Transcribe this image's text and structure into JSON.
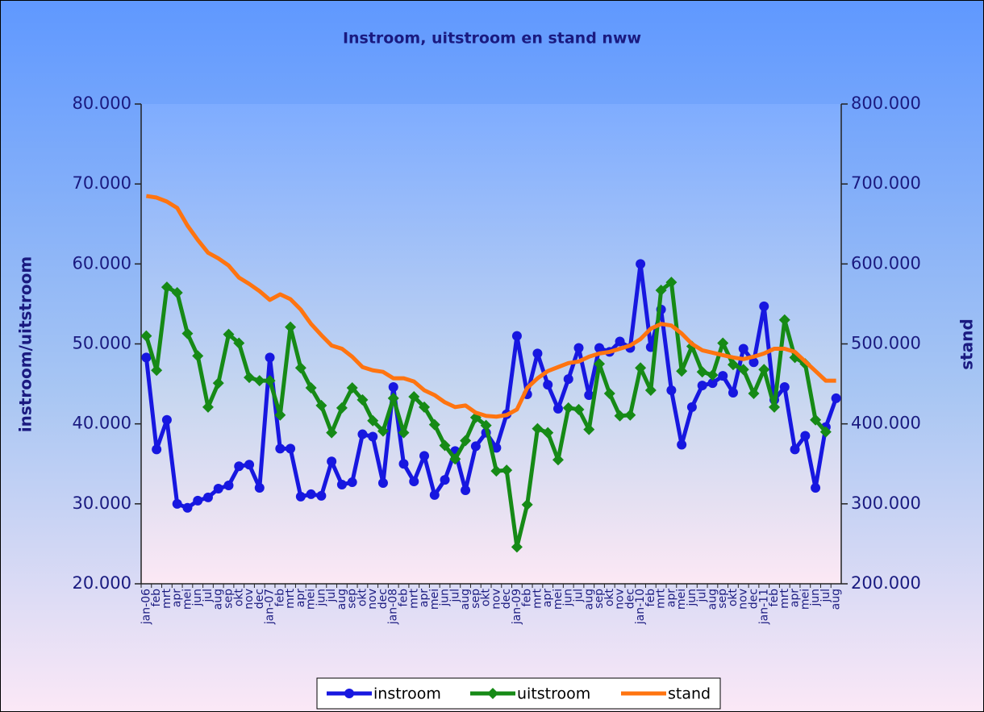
{
  "chart_data": {
    "type": "line",
    "title": "Instroom, uitstroom en stand nww",
    "y_label": "instroom/uitstroom",
    "y2_label": "stand",
    "categories": [
      "jan-06",
      "feb",
      "mrt",
      "apr",
      "mei",
      "jun",
      "jul",
      "aug",
      "sep",
      "okt",
      "nov",
      "dec",
      "jan-07",
      "feb",
      "mrt",
      "apr",
      "mei",
      "jun",
      "jul",
      "aug",
      "sep",
      "okt",
      "nov",
      "dec",
      "jan-08",
      "feb",
      "mrt",
      "apr",
      "mei",
      "jun",
      "jul",
      "aug",
      "sep",
      "okt",
      "nov",
      "dec",
      "jan-09",
      "feb",
      "mrt",
      "apr",
      "mei",
      "jun",
      "jul",
      "aug",
      "sep",
      "okt",
      "nov",
      "dec",
      "jan-10",
      "feb",
      "mrt",
      "apr",
      "mei",
      "jun",
      "jul",
      "aug",
      "sep",
      "okt",
      "nov",
      "dec",
      "jan-11",
      "feb",
      "mrt",
      "apr",
      "mei",
      "jun",
      "jul",
      "aug"
    ],
    "series": [
      {
        "name": "instroom",
        "color": "#1717e0",
        "marker": "circle",
        "values": [
          48300,
          36800,
          40500,
          30000,
          29500,
          30400,
          30800,
          31900,
          32300,
          34700,
          34900,
          32000,
          48300,
          36900,
          36900,
          30900,
          31200,
          31000,
          35300,
          32400,
          32700,
          38700,
          38400,
          32600,
          44600,
          35000,
          32800,
          36000,
          31100,
          33000,
          36600,
          31700,
          37200,
          38900,
          37000,
          41200,
          51000,
          43700,
          48800,
          44900,
          41900,
          45600,
          49500,
          43600,
          49500,
          49000,
          50300,
          49500,
          60000,
          49600,
          54300,
          44200,
          37400,
          42100,
          44800,
          45100,
          46000,
          43900,
          49400,
          47700,
          54700,
          43000,
          44600,
          36800,
          38500,
          32000,
          39600,
          43200
        ]
      },
      {
        "name": "uitstroom",
        "color": "#168a16",
        "marker": "diamond",
        "values": [
          51000,
          46700,
          57100,
          56400,
          51300,
          48500,
          42100,
          45100,
          51200,
          50100,
          45800,
          45400,
          45400,
          41100,
          52100,
          47000,
          44500,
          42300,
          38900,
          42000,
          44500,
          43000,
          40400,
          39100,
          43200,
          38900,
          43400,
          42100,
          39900,
          37300,
          35600,
          37900,
          40800,
          39800,
          34100,
          34200,
          24600,
          29900,
          39400,
          38900,
          35500,
          42000,
          41800,
          39300,
          47500,
          43800,
          41000,
          41100,
          47000,
          44200,
          56700,
          57700,
          46600,
          49700,
          46500,
          46100,
          50100,
          47400,
          46800,
          43800,
          46800,
          42100,
          53000,
          48300,
          47500,
          40500,
          39000,
          null
        ]
      },
      {
        "name": "stand",
        "color": "#ff7410",
        "marker": "none",
        "axis": "y2",
        "values": [
          685000,
          683000,
          678000,
          670000,
          648000,
          630000,
          614000,
          607000,
          598000,
          583000,
          575000,
          566000,
          555000,
          562000,
          556000,
          543000,
          525000,
          511000,
          498000,
          494000,
          484000,
          471000,
          467000,
          465000,
          457000,
          457000,
          453000,
          442000,
          436000,
          427000,
          421000,
          423000,
          414000,
          410000,
          409000,
          411000,
          418000,
          445000,
          457000,
          466000,
          471000,
          476000,
          478000,
          484000,
          488000,
          490000,
          494000,
          498000,
          506000,
          519000,
          525000,
          523000,
          513000,
          500000,
          492000,
          489000,
          486000,
          483000,
          481000,
          484000,
          488000,
          494000,
          494000,
          490000,
          478000,
          466000,
          454000,
          454000
        ]
      }
    ],
    "ylim": [
      20000,
      80000
    ],
    "yticks": [
      {
        "value": 20000,
        "label": "20.000"
      },
      {
        "value": 30000,
        "label": "30.000"
      },
      {
        "value": 40000,
        "label": "40.000"
      },
      {
        "value": 50000,
        "label": "50.000"
      },
      {
        "value": 60000,
        "label": "60.000"
      },
      {
        "value": 70000,
        "label": "70.000"
      },
      {
        "value": 80000,
        "label": "80.000"
      }
    ],
    "y2lim": [
      200000,
      800000
    ],
    "y2ticks": [
      {
        "value": 200000,
        "label": "200.000"
      },
      {
        "value": 300000,
        "label": "300.000"
      },
      {
        "value": 400000,
        "label": "400.000"
      },
      {
        "value": 500000,
        "label": "500.000"
      },
      {
        "value": 600000,
        "label": "600.000"
      },
      {
        "value": 700000,
        "label": "700.000"
      },
      {
        "value": 800000,
        "label": "800.000"
      }
    ],
    "legend": "bottom"
  }
}
